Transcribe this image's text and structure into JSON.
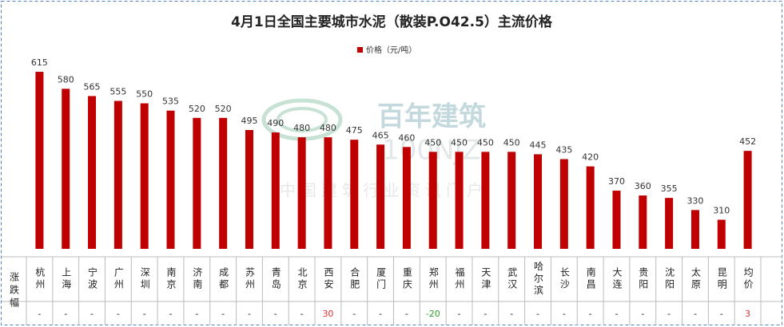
{
  "chart_data": {
    "type": "bar",
    "title": "4月1日全国主要城市水泥（散装P.O42.5）主流价格",
    "legend_label": "价格（元/吨）",
    "color": "#c00000",
    "categories": [
      "杭州",
      "上海",
      "宁波",
      "广州",
      "深圳",
      "南京",
      "济南",
      "成都",
      "苏州",
      "青岛",
      "北京",
      "西安",
      "合肥",
      "厦门",
      "重庆",
      "郑州",
      "福州",
      "天津",
      "武汉",
      "哈尔滨",
      "长沙",
      "南昌",
      "大连",
      "贵阳",
      "沈阳",
      "太原",
      "昆明",
      "均价"
    ],
    "values": [
      615,
      580,
      565,
      555,
      550,
      535,
      520,
      520,
      495,
      490,
      480,
      480,
      475,
      465,
      460,
      450,
      450,
      450,
      450,
      445,
      435,
      420,
      370,
      360,
      355,
      330,
      310,
      452
    ],
    "ylim": [
      250,
      620
    ],
    "change_header": "涨跌幅",
    "changes": [
      "-",
      "-",
      "-",
      "-",
      "-",
      "-",
      "-",
      "-",
      "-",
      "-",
      "-",
      30,
      "-",
      "-",
      "-",
      -20,
      "-",
      "-",
      "-",
      "-",
      "-",
      "-",
      "-",
      "-",
      "-",
      "-",
      "-",
      3
    ],
    "up_color": "#e03030",
    "down_color": "#2ca02c",
    "watermark": {
      "brand": "百年建筑",
      "domain": "100NJZ",
      "slogan": "中国建筑行业资讯门户"
    }
  }
}
